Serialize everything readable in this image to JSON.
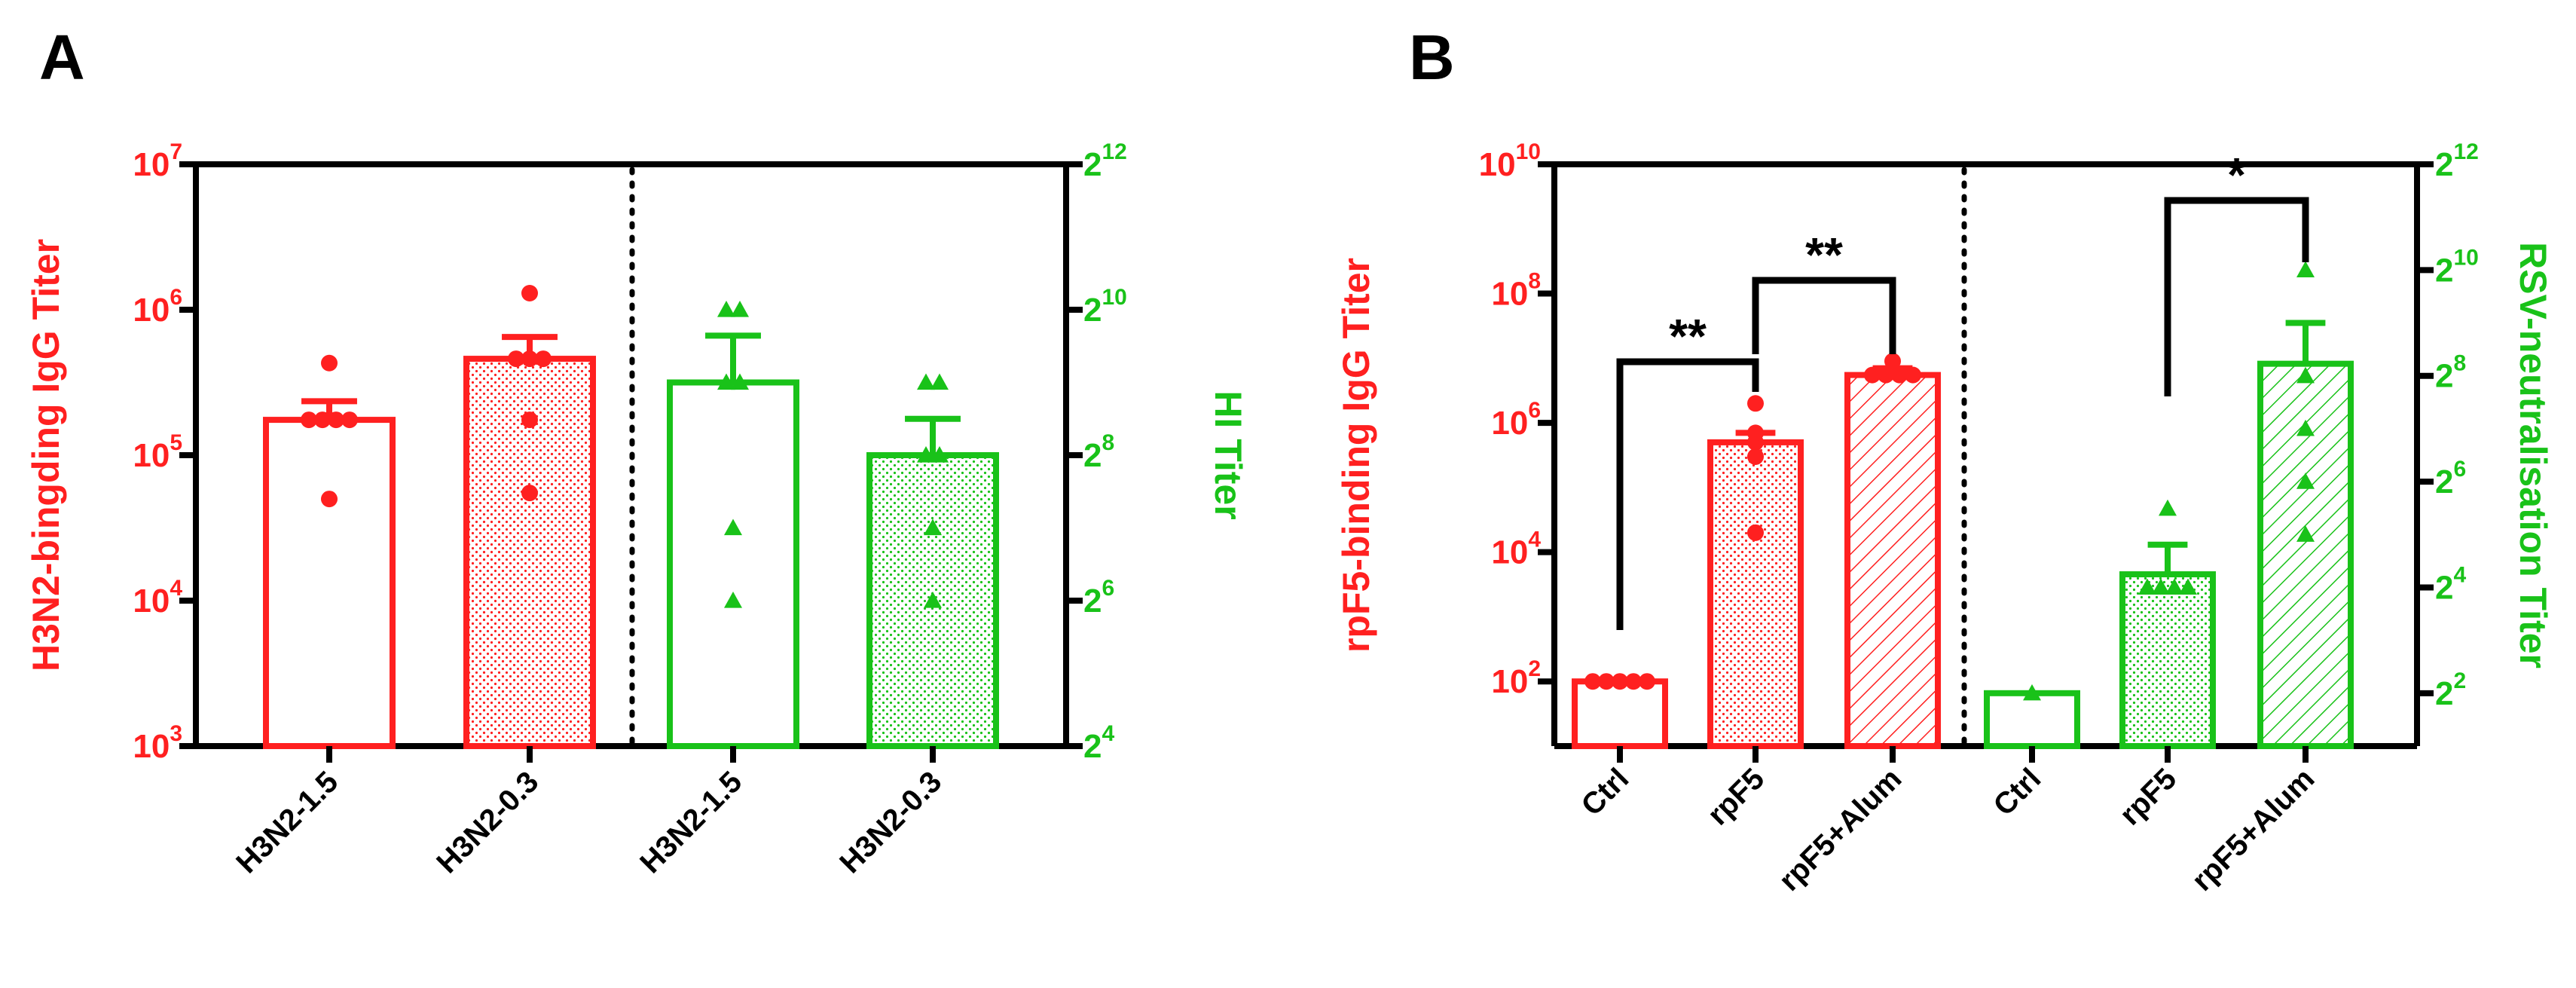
{
  "colors": {
    "left_axis": "#ff2020",
    "right_axis": "#19c219",
    "axes": "#000000"
  },
  "chart_data": [
    {
      "panel": "A",
      "type": "bar",
      "left_axis": {
        "label": "H3N2-bingding IgG Titer",
        "scale": "log10",
        "ylim": [
          1000,
          10000000
        ],
        "ticks": [
          {
            "base": "10",
            "exp": "3",
            "value": 1000
          },
          {
            "base": "10",
            "exp": "4",
            "value": 10000
          },
          {
            "base": "10",
            "exp": "5",
            "value": 100000
          },
          {
            "base": "10",
            "exp": "6",
            "value": 1000000
          },
          {
            "base": "10",
            "exp": "7",
            "value": 10000000
          }
        ]
      },
      "right_axis": {
        "label": "HI Titer",
        "scale": "log2",
        "ylim": [
          16,
          4096
        ],
        "ticks": [
          {
            "base": "2",
            "exp": "4",
            "value": 16
          },
          {
            "base": "2",
            "exp": "6",
            "value": 64
          },
          {
            "base": "2",
            "exp": "8",
            "value": 256
          },
          {
            "base": "2",
            "exp": "10",
            "value": 1024
          },
          {
            "base": "2",
            "exp": "12",
            "value": 4096
          }
        ]
      },
      "groups": [
        {
          "label": "H3N2-1.5",
          "axis": "left",
          "fill": "none",
          "marker": "circle",
          "mean": 175000,
          "sem_upper": 235000,
          "points": [
            430000,
            175000,
            175000,
            175000,
            175000,
            50000
          ]
        },
        {
          "label": "H3N2-0.3",
          "axis": "left",
          "fill": "dots",
          "marker": "circle",
          "mean": 460000,
          "sem_upper": 650000,
          "points": [
            1300000,
            460000,
            460000,
            460000,
            175000,
            55000
          ]
        },
        {
          "label": "H3N2-1.5",
          "axis": "right",
          "fill": "none",
          "marker": "triangle",
          "mean": 512,
          "sem_upper": 800,
          "points": [
            1024,
            1024,
            512,
            512,
            128,
            64
          ]
        },
        {
          "label": "H3N2-0.3",
          "axis": "right",
          "fill": "dots",
          "marker": "triangle",
          "mean": 256,
          "sem_upper": 362,
          "points": [
            512,
            512,
            256,
            256,
            128,
            64
          ]
        }
      ]
    },
    {
      "panel": "B",
      "type": "bar",
      "left_axis": {
        "label": "rpF5-binding IgG Titer",
        "scale": "log10",
        "ylim": [
          10,
          10000000000
        ],
        "ticks": [
          {
            "base": "10",
            "exp": "2",
            "value": 100
          },
          {
            "base": "10",
            "exp": "4",
            "value": 10000
          },
          {
            "base": "10",
            "exp": "6",
            "value": 1000000
          },
          {
            "base": "10",
            "exp": "8",
            "value": 100000000
          },
          {
            "base": "10",
            "exp": "10",
            "value": 10000000000
          }
        ]
      },
      "right_axis": {
        "label": "RSV-neutralisation Titer",
        "scale": "log2",
        "ylim": [
          2,
          4096
        ],
        "ticks": [
          {
            "base": "2",
            "exp": "2",
            "value": 4
          },
          {
            "base": "2",
            "exp": "4",
            "value": 16
          },
          {
            "base": "2",
            "exp": "6",
            "value": 64
          },
          {
            "base": "2",
            "exp": "8",
            "value": 256
          },
          {
            "base": "2",
            "exp": "10",
            "value": 1024
          },
          {
            "base": "2",
            "exp": "12",
            "value": 4096
          }
        ]
      },
      "groups": [
        {
          "label": "Ctrl",
          "axis": "left",
          "fill": "none",
          "marker": "circle",
          "mean": 100,
          "sem_upper": null,
          "points": [
            100,
            100,
            100,
            100,
            100
          ]
        },
        {
          "label": "rpF5",
          "axis": "left",
          "fill": "dots",
          "marker": "circle",
          "mean": 500000,
          "sem_upper": 700000,
          "points": [
            2000000,
            700000,
            500000,
            300000,
            20000
          ]
        },
        {
          "label": "rpF5+Alum",
          "axis": "left",
          "fill": "hatch",
          "marker": "circle",
          "mean": 5500000,
          "sem_upper": 7000000,
          "points": [
            9000000,
            5500000,
            5500000,
            5500000,
            5500000
          ]
        },
        {
          "label": "Ctrl",
          "axis": "right",
          "fill": "none",
          "marker": "triangle",
          "mean": 4,
          "sem_upper": null,
          "points": [
            4
          ]
        },
        {
          "label": "rpF5",
          "axis": "right",
          "fill": "dots",
          "marker": "triangle",
          "mean": 19,
          "sem_upper": 28,
          "points": [
            45,
            16,
            16,
            16,
            16
          ]
        },
        {
          "label": "rpF5+Alum",
          "axis": "right",
          "fill": "hatch",
          "marker": "triangle",
          "mean": 300,
          "sem_upper": 512,
          "points": [
            1024,
            256,
            128,
            64,
            32
          ]
        }
      ],
      "significance": [
        {
          "groups": [
            0,
            1
          ],
          "label": "**"
        },
        {
          "groups": [
            1,
            2
          ],
          "label": "**"
        },
        {
          "groups": [
            4,
            5
          ],
          "label": "*"
        }
      ]
    }
  ]
}
